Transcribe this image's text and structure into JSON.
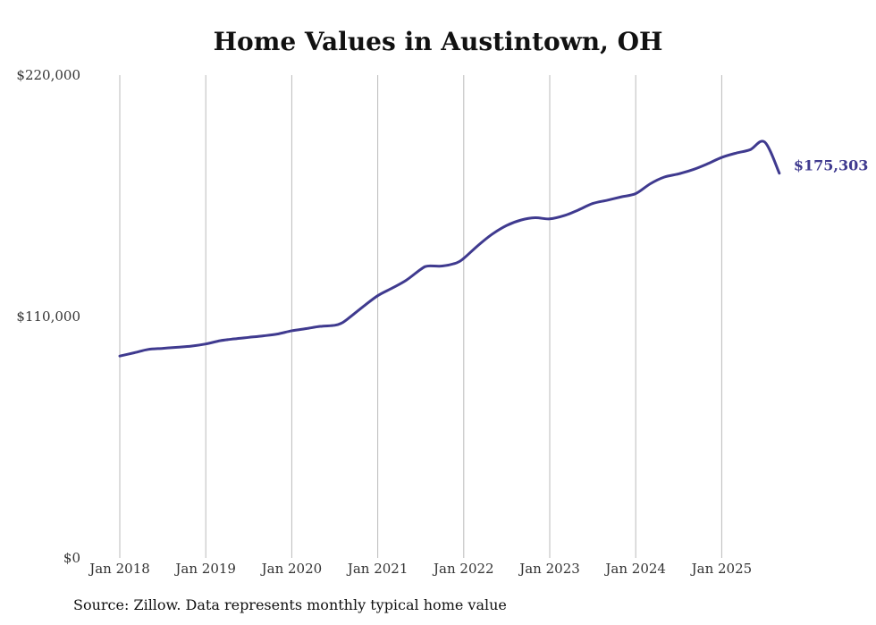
{
  "chart_data": {
    "type": "line",
    "title": "Home Values in Austintown, OH",
    "xlabel": "",
    "ylabel": "",
    "ylim": [
      0,
      220000
    ],
    "yticks": [
      0,
      110000,
      220000
    ],
    "ytick_labels": [
      "$0",
      "$110,000",
      "$220,000"
    ],
    "xlim": [
      2018,
      2025.67
    ],
    "xticks": [
      2018,
      2019,
      2020,
      2021,
      2022,
      2023,
      2024,
      2025
    ],
    "xtick_labels": [
      "Jan 2018",
      "Jan 2019",
      "Jan 2020",
      "Jan 2021",
      "Jan 2022",
      "Jan 2023",
      "Jan 2024",
      "Jan 2025"
    ],
    "grid": "vertical",
    "series": [
      {
        "name": "Typical home value",
        "color": "#3f3a8f",
        "x": [
          2018.0,
          2018.17,
          2018.33,
          2018.5,
          2018.67,
          2018.83,
          2019.0,
          2019.17,
          2019.33,
          2019.5,
          2019.67,
          2019.83,
          2020.0,
          2020.17,
          2020.33,
          2020.5,
          2020.58,
          2020.67,
          2020.83,
          2021.0,
          2021.17,
          2021.33,
          2021.5,
          2021.58,
          2021.75,
          2021.92,
          2022.0,
          2022.17,
          2022.33,
          2022.5,
          2022.67,
          2022.83,
          2023.0,
          2023.17,
          2023.33,
          2023.5,
          2023.67,
          2023.83,
          2024.0,
          2024.17,
          2024.33,
          2024.5,
          2024.67,
          2024.83,
          2025.0,
          2025.17,
          2025.33,
          2025.5,
          2025.67
        ],
        "y": [
          92000,
          93500,
          95000,
          95500,
          96000,
          96500,
          97500,
          99000,
          99800,
          100500,
          101200,
          102000,
          103500,
          104500,
          105500,
          106000,
          107000,
          109500,
          114500,
          119500,
          123000,
          126500,
          131500,
          133000,
          133000,
          134500,
          136500,
          142500,
          147500,
          151500,
          154000,
          155000,
          154500,
          156000,
          158500,
          161500,
          163000,
          164500,
          166000,
          170500,
          173500,
          175000,
          177000,
          179500,
          182500,
          184500,
          186000,
          189500,
          175303
        ]
      }
    ],
    "end_label": "$175,303",
    "source": "Source: Zillow. Data represents monthly typical home value"
  },
  "colors": {
    "line": "#3f3a8f",
    "grid": "#bbbbbb",
    "text": "#111111"
  }
}
